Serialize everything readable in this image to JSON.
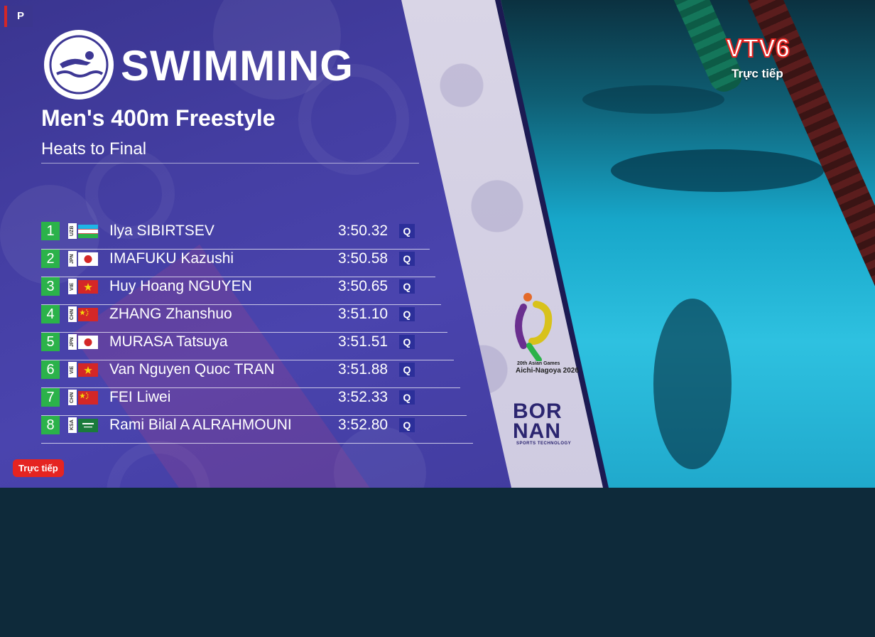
{
  "corner_tag": "P",
  "sport": "SWIMMING",
  "event": "Men's 400m Freestyle",
  "phase": "Heats to Final",
  "qualifier_mark": "Q",
  "results": [
    {
      "rank": "1",
      "noc": "UZB",
      "flag": "uzb",
      "name": "Ilya SIBIRTSEV",
      "time": "3:50.32",
      "q": "Q"
    },
    {
      "rank": "2",
      "noc": "JPN",
      "flag": "jpn",
      "name": "IMAFUKU Kazushi",
      "time": "3:50.58",
      "q": "Q"
    },
    {
      "rank": "3",
      "noc": "VIE",
      "flag": "vie",
      "name": "Huy Hoang NGUYEN",
      "time": "3:50.65",
      "q": "Q"
    },
    {
      "rank": "4",
      "noc": "CHN",
      "flag": "chn",
      "name": "ZHANG Zhanshuo",
      "time": "3:51.10",
      "q": "Q"
    },
    {
      "rank": "5",
      "noc": "JPN",
      "flag": "jpn",
      "name": "MURASA Tatsuya",
      "time": "3:51.51",
      "q": "Q"
    },
    {
      "rank": "6",
      "noc": "VIE",
      "flag": "vie",
      "name": "Van Nguyen Quoc TRAN",
      "time": "3:51.88",
      "q": "Q"
    },
    {
      "rank": "7",
      "noc": "CHN",
      "flag": "chn",
      "name": "FEI Liwei",
      "time": "3:52.33",
      "q": "Q"
    },
    {
      "rank": "8",
      "noc": "KSA",
      "flag": "ksa",
      "name": "Rami Bilal A ALRAHMOUNI",
      "time": "3:52.80",
      "q": "Q"
    }
  ],
  "live_badge": "Trực tiếp",
  "channel": {
    "logo": "VTV6",
    "sub": "Trực tiếp"
  },
  "games": {
    "line1": "20th Asian Games",
    "line2": "Aichi-Nagoya 2026"
  },
  "sponsor": {
    "line1": "BOR",
    "line2": "NAN",
    "sub": "SPORTS TECHNOLOGY"
  },
  "colors": {
    "panel": "#443ea2",
    "rank_green": "#2bb24a",
    "live_red": "#e52421",
    "pool": "#2ec1e0"
  }
}
